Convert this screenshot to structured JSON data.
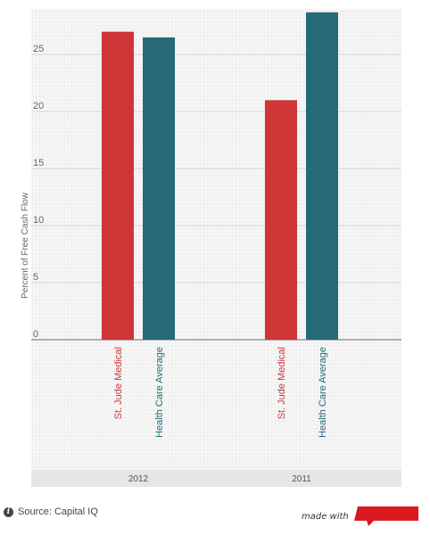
{
  "chart_data": {
    "type": "bar",
    "ylabel": "Percent of Free Cash Flow",
    "ylim": [
      0,
      29
    ],
    "yticks": [
      0,
      5,
      10,
      15,
      20,
      25
    ],
    "grid": true,
    "groups": [
      {
        "label": "2012",
        "bars": [
          {
            "label": "St. Jude Medical",
            "value": 27.0,
            "color": "#cf3437"
          },
          {
            "label": "Health Care Average",
            "value": 26.5,
            "color": "#266a78"
          }
        ]
      },
      {
        "label": "2011",
        "bars": [
          {
            "label": "St. Jude Medical",
            "value": 21.0,
            "color": "#cf3437"
          },
          {
            "label": "Health Care Average",
            "value": 28.7,
            "color": "#266a78"
          }
        ]
      }
    ]
  },
  "footer": {
    "source_icon": "info-icon",
    "source": "Source: Capital IQ",
    "made_with": "made with",
    "brand_color": "#d9191f"
  }
}
